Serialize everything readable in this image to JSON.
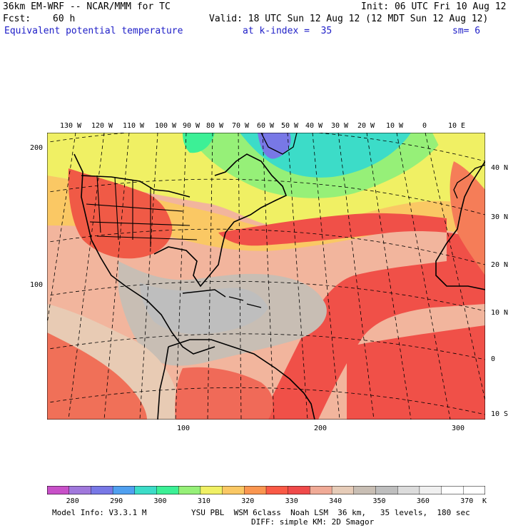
{
  "header": {
    "model_line": "36km EM-WRF -- NCAR/MMM for TC",
    "init_line": "Init: 06 UTC Fri 10 Aug 12",
    "fcst_label": "Fcst:",
    "fcst_value": "60 h",
    "valid_line": "Valid: 18 UTC Sun 12 Aug 12 (12 MDT Sun 12 Aug 12)",
    "field_name": "Equivalent potential temperature",
    "level": "at k-index =  35",
    "smoothing": "sm= 6"
  },
  "map": {
    "top_lon_labels": [
      "130 W",
      "120 W",
      "110 W",
      "100 W",
      "90 W",
      "80 W",
      "70 W",
      "60 W",
      "50 W",
      "40 W",
      "30 W",
      "20 W",
      "10 W",
      "0",
      "10 E"
    ],
    "right_lat_labels": [
      "40 N",
      "30 N",
      "20 N",
      "10 N",
      "0",
      "10 S"
    ],
    "left_grid_labels": [
      "200",
      "100"
    ],
    "bottom_grid_labels": [
      "100",
      "200",
      "300"
    ]
  },
  "colorbar": {
    "labels": [
      "280",
      "290",
      "300",
      "310",
      "320",
      "330",
      "340",
      "350",
      "360",
      "370"
    ],
    "unit": "K",
    "colors": [
      "#c850c8",
      "#a078dc",
      "#7878e6",
      "#50a0f0",
      "#3cdcc8",
      "#3cf096",
      "#96f078",
      "#f0f064",
      "#fac864",
      "#fa9650",
      "#fa5a46",
      "#f04a4a",
      "#f0aa96",
      "#e6ccb8",
      "#c8beb4",
      "#bebebe",
      "#dcdcdc",
      "#f0f0f0",
      "#ffffff",
      "#ffffff"
    ]
  },
  "footer": {
    "model_info": "Model Info: V3.3.1 M",
    "physics": "YSU PBL  WSM 6class  Noah LSM  36 km,   35 levels,  180 sec",
    "diffusion": "DIFF: simple KM: 2D Smagor"
  }
}
